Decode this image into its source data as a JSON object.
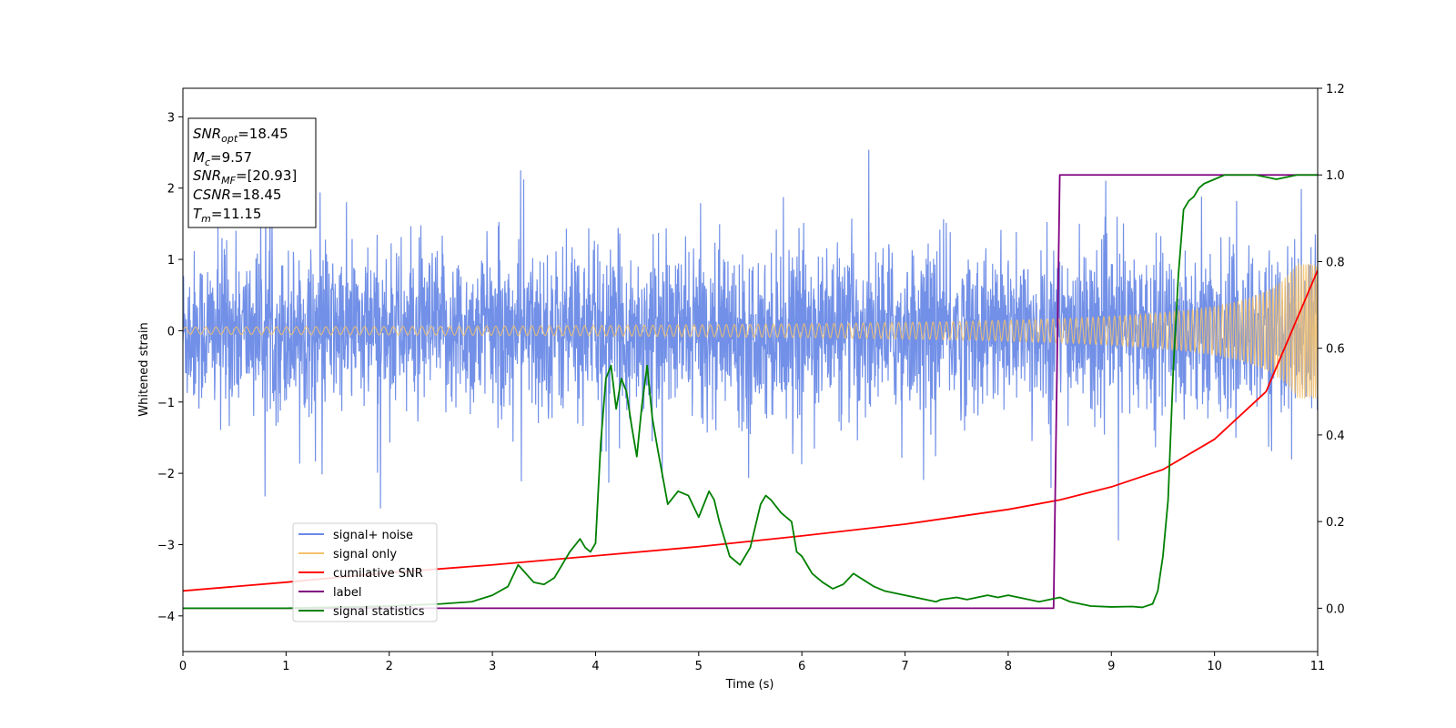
{
  "chart_data": {
    "type": "line",
    "xlabel": "Time (s)",
    "ylabel": "Whitened strain",
    "xlim": [
      0,
      11
    ],
    "ylim": [
      -4.5,
      3.4
    ],
    "y2lim": [
      -0.1,
      1.2
    ],
    "xticks": [
      "0",
      "1",
      "2",
      "3",
      "4",
      "5",
      "6",
      "7",
      "8",
      "9",
      "10",
      "11"
    ],
    "yticks": [
      "−4",
      "−3",
      "−2",
      "−1",
      "0",
      "1",
      "2",
      "3"
    ],
    "y2ticks": [
      "0.0",
      "0.2",
      "0.4",
      "0.6",
      "0.8",
      "1.0",
      "1.2"
    ],
    "grid": false,
    "legend_position": "lower-left",
    "info_box": [
      {
        "main": "SNR",
        "sub": "opt",
        "value": "=18.45"
      },
      {
        "main": "M",
        "sub": "c",
        "value": "=9.57"
      },
      {
        "main": "SNR",
        "sub": "MF",
        "value": "=[20.93]"
      },
      {
        "main": "CSNR",
        "sub": "",
        "value": "=18.45"
      },
      {
        "main": "T",
        "sub": "m",
        "value": "=11.15"
      }
    ],
    "series": [
      {
        "name": "signal+ noise",
        "color": "#6a8ae6",
        "axis": "left",
        "style": "noise band, roughly ±1.2 with spikes to ±2.8"
      },
      {
        "name": "signal only",
        "color": "#f5c26b",
        "axis": "left",
        "style": "chirp, amplitude ~0.05 at t=0 growing to ~0.9 at t=11"
      },
      {
        "name": "cumilative SNR",
        "color": "#ff0000",
        "axis": "right",
        "x": [
          0,
          1,
          2,
          3,
          4,
          5,
          6,
          7,
          8,
          8.5,
          9,
          9.5,
          10,
          10.5,
          11
        ],
        "values": [
          0.04,
          0.06,
          0.082,
          0.1,
          0.121,
          0.142,
          0.167,
          0.194,
          0.228,
          0.25,
          0.28,
          0.32,
          0.39,
          0.5,
          0.78
        ]
      },
      {
        "name": "label",
        "color": "#800080",
        "axis": "right",
        "x": [
          0,
          8.44,
          8.5,
          11
        ],
        "values": [
          0,
          0,
          1,
          1
        ]
      },
      {
        "name": "signal statistics",
        "color": "#008000",
        "axis": "right",
        "x": [
          0,
          1,
          2,
          2.5,
          2.8,
          3.0,
          3.15,
          3.25,
          3.4,
          3.5,
          3.6,
          3.75,
          3.85,
          3.9,
          3.95,
          4.0,
          4.05,
          4.1,
          4.15,
          4.2,
          4.25,
          4.3,
          4.35,
          4.4,
          4.45,
          4.5,
          4.55,
          4.6,
          4.7,
          4.8,
          4.9,
          5.0,
          5.05,
          5.1,
          5.15,
          5.2,
          5.3,
          5.4,
          5.5,
          5.6,
          5.65,
          5.7,
          5.8,
          5.9,
          5.95,
          6.0,
          6.1,
          6.2,
          6.3,
          6.4,
          6.5,
          6.6,
          6.7,
          6.8,
          6.9,
          7.0,
          7.1,
          7.2,
          7.3,
          7.35,
          7.5,
          7.6,
          7.7,
          7.8,
          7.9,
          8.0,
          8.1,
          8.2,
          8.3,
          8.4,
          8.5,
          8.6,
          8.7,
          8.8,
          9.0,
          9.2,
          9.3,
          9.4,
          9.45,
          9.5,
          9.55,
          9.6,
          9.65,
          9.7,
          9.75,
          9.8,
          9.85,
          9.9,
          10.0,
          10.1,
          10.2,
          10.4,
          10.6,
          10.8,
          11.0
        ],
        "values": [
          0.0,
          0.0,
          0.005,
          0.01,
          0.015,
          0.03,
          0.05,
          0.1,
          0.06,
          0.055,
          0.07,
          0.13,
          0.16,
          0.14,
          0.13,
          0.15,
          0.38,
          0.53,
          0.56,
          0.46,
          0.53,
          0.5,
          0.42,
          0.35,
          0.47,
          0.56,
          0.44,
          0.37,
          0.24,
          0.27,
          0.26,
          0.21,
          0.24,
          0.27,
          0.25,
          0.2,
          0.12,
          0.1,
          0.14,
          0.24,
          0.26,
          0.25,
          0.22,
          0.2,
          0.13,
          0.12,
          0.08,
          0.06,
          0.045,
          0.055,
          0.08,
          0.065,
          0.05,
          0.04,
          0.035,
          0.03,
          0.025,
          0.02,
          0.015,
          0.02,
          0.025,
          0.02,
          0.025,
          0.03,
          0.025,
          0.03,
          0.025,
          0.02,
          0.015,
          0.02,
          0.025,
          0.015,
          0.01,
          0.005,
          0.003,
          0.004,
          0.002,
          0.01,
          0.04,
          0.12,
          0.25,
          0.55,
          0.77,
          0.92,
          0.94,
          0.95,
          0.97,
          0.98,
          0.99,
          1.0,
          1.0,
          1.0,
          0.99,
          1.0,
          1.0
        ]
      }
    ]
  }
}
